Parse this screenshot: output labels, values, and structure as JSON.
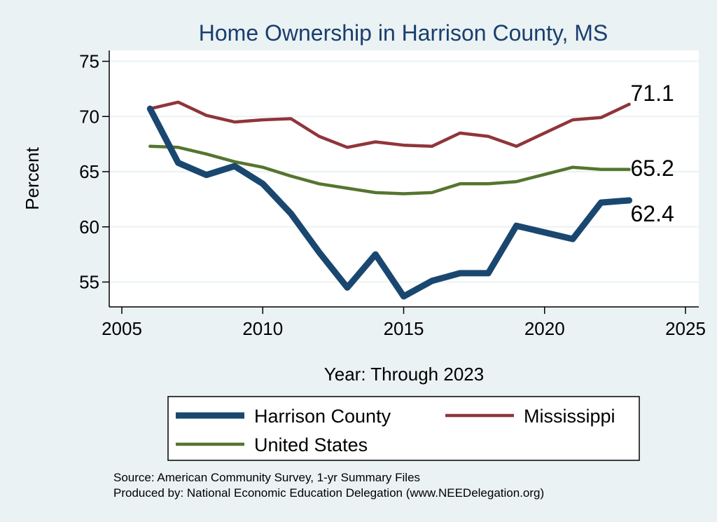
{
  "chart_data": {
    "type": "line",
    "title": "Home Ownership in Harrison County, MS",
    "xlabel": "Year: Through 2023",
    "ylabel": "Percent",
    "xlim": [
      2005,
      2025
    ],
    "ylim": [
      53,
      76
    ],
    "xticks": [
      2005,
      2010,
      2015,
      2020,
      2025
    ],
    "yticks": [
      55,
      60,
      65,
      70,
      75
    ],
    "grid": true,
    "legend_position": "bottom",
    "series": [
      {
        "name": "Harrison County",
        "color": "#1a476f",
        "end_label": "62.4",
        "x": [
          2006,
          2007,
          2008,
          2009,
          2010,
          2011,
          2012,
          2013,
          2014,
          2015,
          2016,
          2017,
          2018,
          2019,
          2021,
          2022,
          2023
        ],
        "y": [
          70.7,
          65.8,
          64.7,
          65.5,
          63.9,
          61.2,
          57.7,
          54.5,
          57.5,
          53.7,
          55.1,
          55.8,
          55.8,
          60.1,
          58.9,
          62.2,
          62.4
        ]
      },
      {
        "name": "Mississippi",
        "color": "#90353b",
        "end_label": "71.1",
        "x": [
          2006,
          2007,
          2008,
          2009,
          2010,
          2011,
          2012,
          2013,
          2014,
          2015,
          2016,
          2017,
          2018,
          2019,
          2021,
          2022,
          2023
        ],
        "y": [
          70.7,
          71.3,
          70.1,
          69.5,
          69.7,
          69.8,
          68.2,
          67.2,
          67.7,
          67.4,
          67.3,
          68.5,
          68.2,
          67.3,
          69.7,
          69.9,
          71.1
        ]
      },
      {
        "name": "United States",
        "color": "#55752f",
        "end_label": "65.2",
        "x": [
          2006,
          2007,
          2008,
          2009,
          2010,
          2011,
          2012,
          2013,
          2014,
          2015,
          2016,
          2017,
          2018,
          2019,
          2021,
          2022,
          2023
        ],
        "y": [
          67.3,
          67.2,
          66.6,
          65.9,
          65.4,
          64.6,
          63.9,
          63.5,
          63.1,
          63.0,
          63.1,
          63.9,
          63.9,
          64.1,
          65.4,
          65.2,
          65.2
        ]
      }
    ],
    "notes": [
      "Source: American Community Survey, 1-yr Summary Files",
      "Produced by: National Economic Education Delegation (www.NEEDelegation.org)"
    ]
  }
}
